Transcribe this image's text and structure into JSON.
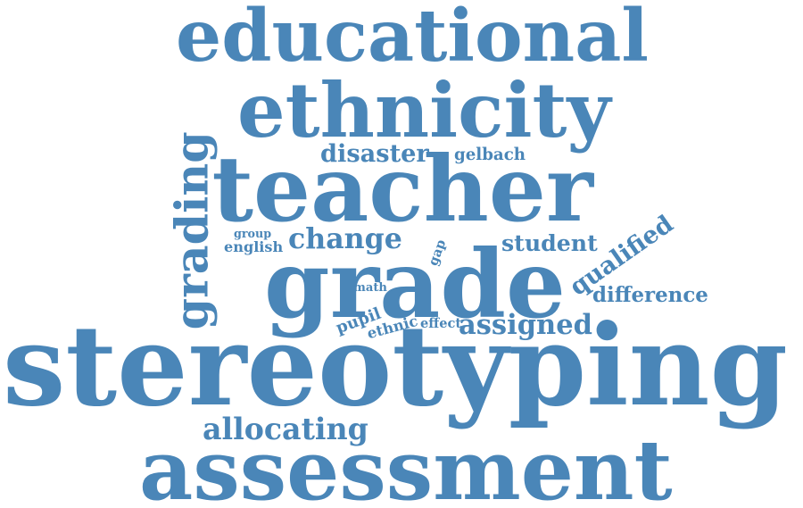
{
  "color": "#4a86b8",
  "words": {
    "educational": "educational",
    "ethnicity": "ethnicity",
    "disaster": "disaster",
    "gelbach": "gelbach",
    "teacher": "teacher",
    "grading": "grading",
    "group": "group",
    "english": "english",
    "change": "change",
    "gap": "gap",
    "student": "student",
    "qualified": "qualified",
    "grade": "grade",
    "math": "math",
    "difference": "difference",
    "pupil": "pupil",
    "ethnic": "ethnic",
    "effect": "effect",
    "assigned": "assigned",
    "stereotyping": "stereotyping",
    "allocating": "allocating",
    "assessment": "assessment"
  }
}
